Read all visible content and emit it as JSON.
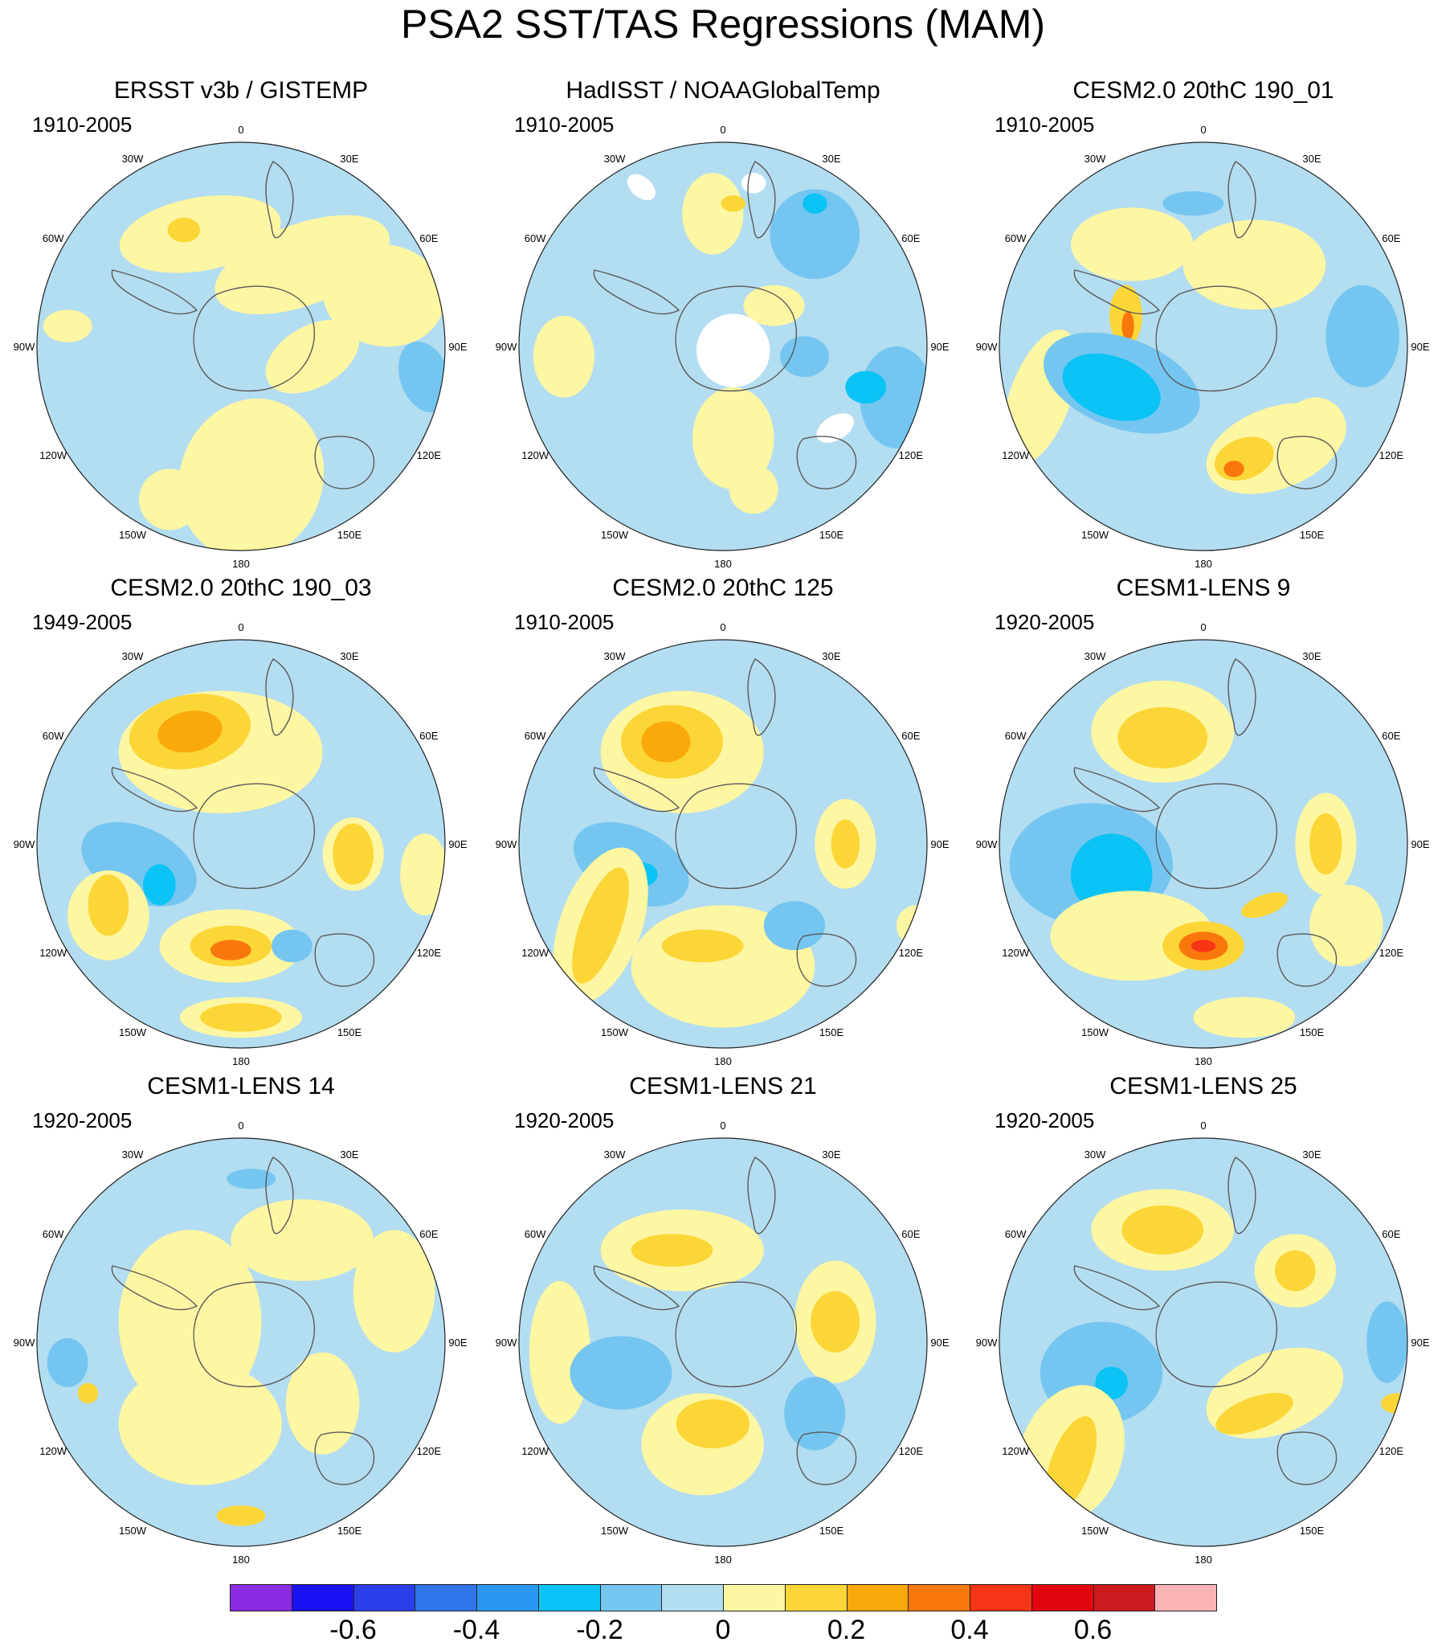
{
  "title": "PSA2 SST/TAS Regressions (MAM)",
  "longitude_labels": [
    "0",
    "30E",
    "60E",
    "90E",
    "120E",
    "150E",
    "180",
    "150W",
    "120W",
    "90W",
    "60W",
    "30W"
  ],
  "panels": [
    {
      "title": "ERSST v3b / GISTEMP",
      "period": "1910-2005",
      "pattern": "obs1"
    },
    {
      "title": "HadISST / NOAAGlobalTemp",
      "period": "1910-2005",
      "pattern": "obs2"
    },
    {
      "title": "CESM2.0 20thC 190_01",
      "period": "1910-2005",
      "pattern": "c1"
    },
    {
      "title": "CESM2.0 20thC 190_03",
      "period": "1949-2005",
      "pattern": "c2"
    },
    {
      "title": "CESM2.0 20thC 125",
      "period": "1910-2005",
      "pattern": "c3"
    },
    {
      "title": "CESM1-LENS 9",
      "period": "1920-2005",
      "pattern": "l9"
    },
    {
      "title": "CESM1-LENS 14",
      "period": "1920-2005",
      "pattern": "l14"
    },
    {
      "title": "CESM1-LENS 21",
      "period": "1920-2005",
      "pattern": "l21"
    },
    {
      "title": "CESM1-LENS 25",
      "period": "1920-2005",
      "pattern": "l25"
    }
  ],
  "colorbar": {
    "colors": [
      "#8B2BE2",
      "#1A12F2",
      "#2A3FEA",
      "#2F74E8",
      "#2A97F0",
      "#0BC3F4",
      "#74C6F0",
      "#B3DDF1",
      "#FDF6A3",
      "#FCD637",
      "#FAA90A",
      "#F9780E",
      "#F73416",
      "#E2040E",
      "#CC1B1E",
      "#FBB3B6"
    ],
    "labels": [
      "-0.6",
      "-0.4",
      "-0.2",
      "0",
      "0.2",
      "0.4",
      "0.6"
    ],
    "label_values": [
      -0.6,
      -0.4,
      -0.2,
      0,
      0.2,
      0.4,
      0.6
    ],
    "levels": [
      -0.7,
      -0.6,
      -0.5,
      -0.4,
      -0.3,
      -0.2,
      -0.1,
      0,
      0.1,
      0.2,
      0.3,
      0.4,
      0.5,
      0.6,
      0.7
    ]
  }
}
